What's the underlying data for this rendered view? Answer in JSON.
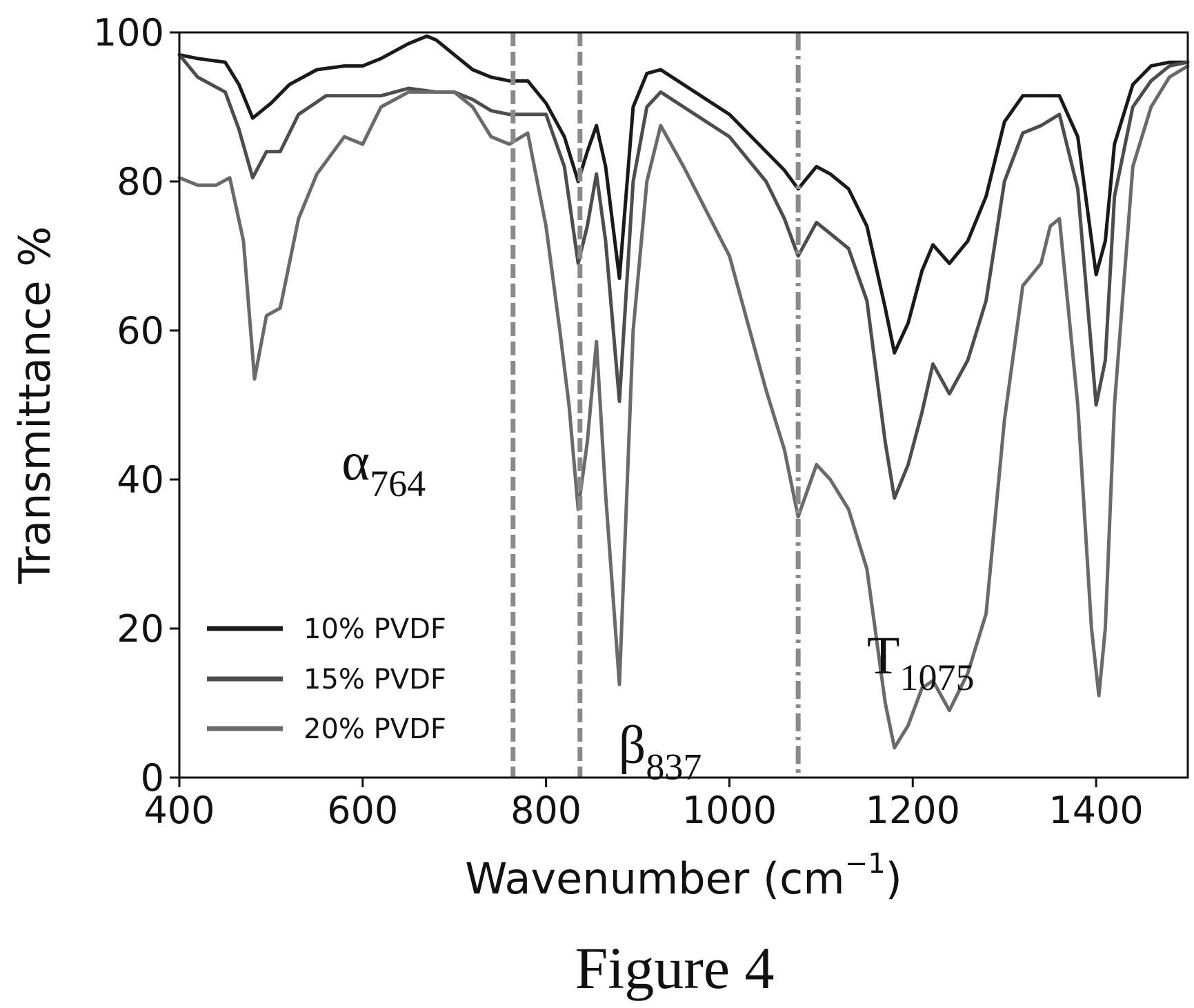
{
  "chart_data": {
    "type": "line",
    "title": "",
    "xlabel": "Wavenumber (cm",
    "xlabel_superscript": "−1",
    "xlabel_close": ")",
    "ylabel": "Transmittance %",
    "xlim": [
      400,
      1500
    ],
    "ylim": [
      0,
      100
    ],
    "xticks": [
      "400",
      "600",
      "800",
      "1000",
      "1200",
      "1400"
    ],
    "yticks": [
      "0",
      "20",
      "40",
      "60",
      "80",
      "100"
    ],
    "legend_position": "lower-left",
    "grid": false,
    "colors": {
      "s10": "#1a1a1a",
      "s15": "#4d4d4d",
      "s20": "#6a6a6a",
      "vline": "#8a8a8a"
    },
    "series": [
      {
        "name": "10% PVDF",
        "x": [
          400,
          420,
          450,
          465,
          480,
          500,
          520,
          550,
          580,
          600,
          620,
          650,
          670,
          680,
          700,
          720,
          740,
          760,
          780,
          800,
          820,
          835,
          845,
          855,
          865,
          880,
          895,
          910,
          925,
          950,
          1000,
          1040,
          1060,
          1075,
          1095,
          1110,
          1130,
          1150,
          1170,
          1180,
          1195,
          1210,
          1222,
          1240,
          1260,
          1280,
          1300,
          1320,
          1340,
          1360,
          1380,
          1400,
          1410,
          1420,
          1440,
          1460,
          1480,
          1500
        ],
        "y": [
          97,
          96.5,
          96,
          93,
          88.5,
          90.5,
          93,
          95,
          95.5,
          95.5,
          96.5,
          98.5,
          99.5,
          99,
          97,
          95,
          94,
          93.5,
          93.5,
          90.5,
          86,
          80,
          84,
          87.5,
          82,
          67,
          90,
          94.5,
          95,
          93,
          89,
          84,
          81.5,
          79,
          82,
          81,
          79,
          74,
          63,
          57,
          61,
          68,
          71.5,
          69,
          72,
          78,
          88,
          91.5,
          91.5,
          91.5,
          86,
          67.5,
          72,
          85,
          93,
          95.5,
          96,
          96
        ]
      },
      {
        "name": "15% PVDF",
        "x": [
          400,
          420,
          450,
          465,
          480,
          495,
          510,
          530,
          560,
          580,
          600,
          620,
          650,
          680,
          700,
          720,
          740,
          760,
          780,
          800,
          820,
          835,
          845,
          855,
          865,
          880,
          895,
          910,
          925,
          950,
          1000,
          1040,
          1060,
          1075,
          1095,
          1110,
          1130,
          1150,
          1170,
          1180,
          1195,
          1210,
          1222,
          1240,
          1260,
          1280,
          1300,
          1320,
          1340,
          1360,
          1380,
          1400,
          1410,
          1420,
          1440,
          1460,
          1480,
          1500
        ],
        "y": [
          97,
          94,
          92,
          87,
          80.5,
          84,
          84,
          89,
          91.5,
          91.5,
          91.5,
          91.5,
          92.5,
          92,
          92,
          91,
          89.5,
          89,
          89,
          89,
          82,
          69,
          74,
          81,
          72,
          50.5,
          80,
          90,
          92,
          90,
          86,
          80,
          75,
          70,
          74.5,
          73,
          71,
          64,
          45,
          37.5,
          42,
          49,
          55.5,
          51.5,
          56,
          64,
          80,
          86.5,
          87.5,
          89,
          79,
          50,
          56,
          78,
          90,
          93.5,
          95.5,
          96
        ]
      },
      {
        "name": "20% PVDF",
        "x": [
          400,
          420,
          440,
          455,
          470,
          482,
          495,
          510,
          530,
          550,
          580,
          600,
          620,
          650,
          680,
          700,
          720,
          740,
          760,
          780,
          800,
          815,
          825,
          835,
          845,
          855,
          865,
          880,
          895,
          910,
          925,
          950,
          1000,
          1040,
          1060,
          1075,
          1095,
          1110,
          1130,
          1150,
          1170,
          1180,
          1195,
          1210,
          1222,
          1240,
          1260,
          1280,
          1300,
          1320,
          1340,
          1350,
          1360,
          1380,
          1395,
          1403,
          1410,
          1420,
          1440,
          1460,
          1480,
          1500
        ],
        "y": [
          80.5,
          79.5,
          79.5,
          80.5,
          72,
          53.5,
          62,
          63,
          75,
          81,
          86,
          85,
          90,
          92,
          92,
          92,
          90,
          86,
          85,
          86.5,
          74,
          60,
          50,
          36,
          45,
          58.5,
          38,
          12.5,
          60,
          80,
          87.5,
          82,
          70,
          52,
          44,
          35,
          42,
          40,
          36,
          28,
          10,
          4,
          7,
          12,
          13,
          9,
          14,
          22,
          48,
          66,
          69,
          74,
          75,
          50,
          20,
          11,
          20,
          50,
          82,
          90,
          94,
          95.5
        ]
      }
    ],
    "vlines": [
      {
        "x": 764,
        "style": "dashed"
      },
      {
        "x": 837,
        "style": "dashed"
      },
      {
        "x": 1075,
        "style": "dashdot"
      }
    ],
    "annotations": [
      {
        "main": "α",
        "sub": "764",
        "x": 577,
        "y": 40
      },
      {
        "main": "β",
        "sub": "837",
        "x": 879,
        "y": 2
      },
      {
        "main": "T",
        "sub": "1075",
        "x": 1150,
        "y": 14
      }
    ]
  },
  "caption": "Figure 4"
}
